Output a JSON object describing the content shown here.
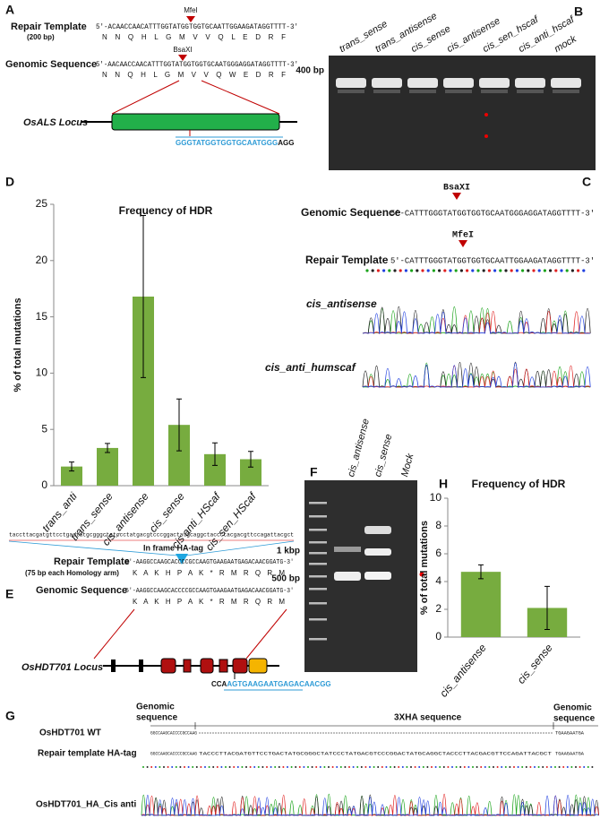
{
  "chart_data": [
    {
      "type": "bar",
      "title": "Frequency of HDR",
      "y_label": "% of total mutations",
      "categories": [
        "trans_anti",
        "trans_sense",
        "cis_antisense",
        "cis_sense",
        "cis anti_HScaf",
        "cis_sen_HScaf"
      ],
      "values": [
        1.7,
        3.35,
        16.8,
        5.4,
        2.8,
        2.35
      ],
      "errors": [
        0.4,
        0.4,
        7.2,
        2.3,
        1.0,
        0.7
      ],
      "color": "#77ac3f",
      "ylim": [
        0,
        25
      ],
      "yticks": [
        0,
        5,
        10,
        15,
        20,
        25
      ],
      "grid": false
    },
    {
      "type": "bar",
      "title": "Frequency of HDR",
      "y_label": "% of total mutations",
      "categories": [
        "cis_antisense",
        "cis_sense"
      ],
      "values": [
        4.7,
        2.1
      ],
      "errors": [
        0.5,
        1.55
      ],
      "color": "#77ac3f",
      "ylim": [
        0,
        10
      ],
      "yticks": [
        0,
        2,
        4,
        6,
        8,
        10
      ],
      "grid": false
    }
  ],
  "panel_labels": {
    "a": "A",
    "b": "B",
    "c": "C",
    "d": "D",
    "e": "E",
    "f": "F",
    "g": "G",
    "h": "H"
  },
  "panel_a": {
    "enzyme_top": "MfeI",
    "repair_label": "Repair Template",
    "repair_size": "(200 bp)",
    "repair_seq": "5'-ACAACCAACATTTGGTATGGTGGTGCAATTGGAAGATAGGTTTT-3'",
    "repair_aa": "N N Q H L G M V V Q L E D R F",
    "enzyme_bottom": "BsaXI",
    "genomic_label": "Genomic Sequence",
    "genomic_seq": "5'-AACAACCAACATTTGGTATGGTGGTGCAATGGGAGGATAGGTTTT-3'",
    "genomic_aa": "N N Q H L G M V V Q W E D R F",
    "locus": "OsALS Locus",
    "guide": "GGGTATGGTGGTGCAATGGG",
    "pam": "AGG"
  },
  "panel_b": {
    "lanes": [
      "trans_sense",
      "trans_antisense",
      "cis_sense",
      "cis_antisense",
      "cis_sen_hscaf",
      "cis_anti_hscaf",
      "mock"
    ],
    "marker": "400 bp"
  },
  "panel_c": {
    "enzyme_top": "BsaXI",
    "genomic_label": "Genomic Sequence",
    "genomic_seq": "5'-CATTTGGGTATGGTGGTGCAATGGGAGGATAGGTTTT-3'",
    "enzyme_bottom": "MfeI",
    "repair_label": "Repair Template",
    "repair_seq": "5'-CATTTGGGTATGGTGGTGCAATTGGAAGATAGGTTTT-3'",
    "trace_labels": [
      "cis_antisense",
      "cis_anti_humscaf"
    ]
  },
  "panel_e": {
    "ha_seq": "taccttacgatgttcctgactatgcgggctatccctatgacgtcccggactatgcaggctaccctacgacgttccagattacgct",
    "ha_label": "In frame HA-tag",
    "repair_label": "Repair Template",
    "repair_note": "(75 bp each Homology arm)",
    "repair_seq": "5'-AAGGCCAAGCACCCCGCCAAGTGAAGAATGAGACAACGGATG-3'",
    "repair_aa": "K A K H P A K * R M R Q R M",
    "genomic_label": "Genomic Sequence",
    "genomic_seq": "5'-AAGGCCAAGCACCCCGCCAAGTGAAGAATGAGACAACGGATG-3'",
    "genomic_aa": "K A K H P A K * R M R Q R M",
    "locus": "OsHDT701 Locus",
    "pam": "CCA",
    "guide": "AGTGAAGAATGAGACAACGG"
  },
  "panel_f": {
    "lanes": [
      "cis_antisense",
      "cis_sense",
      "Mock"
    ],
    "markers": [
      "1 kbp",
      "500 bp"
    ]
  },
  "panel_g": {
    "left_heading": [
      "Genomic",
      "sequence"
    ],
    "middle_heading": "3XHA sequence",
    "right_heading": [
      "Genomic",
      "sequence"
    ],
    "rows": [
      "OsHDT701 WT",
      "Repair template HA-tag",
      "OsHDT701_HA_Cis anti"
    ],
    "wt_seq": "GGCCAAGCACCCCGCCAAG",
    "wt_seq_end": "TGAAGAATGA",
    "repair_seq_left": "GGCCAAGCACCCCGCCAAG",
    "repair_seq_ha": "TACCCTTACGATGTTCCTGACTATGCGGGCTATCCCTATGACGTCCCGGACTATGCAGGCTACCCTTACGACGTTCCAGATTACGCT",
    "repair_seq_end": "TGAAGAATGA"
  }
}
